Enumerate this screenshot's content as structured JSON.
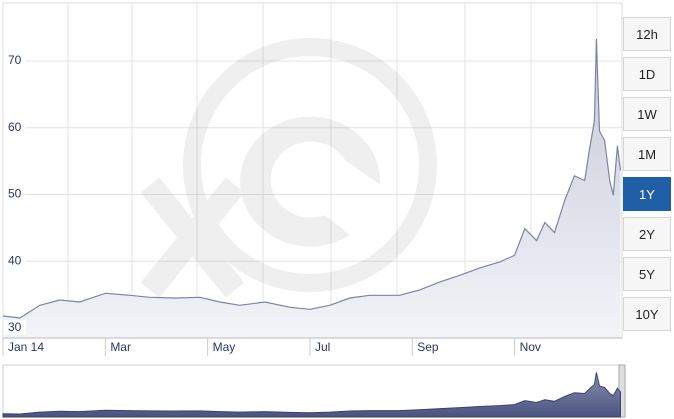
{
  "chart_data": {
    "type": "area",
    "x": [
      0,
      0.33,
      0.72,
      1.11,
      1.5,
      2,
      2.48,
      2.87,
      3.36,
      3.85,
      4.24,
      4.63,
      5.12,
      5.61,
      6.0,
      6.39,
      6.78,
      7.17,
      7.75,
      8.14,
      8.54,
      8.93,
      9.32,
      9.71,
      10.0,
      10.2,
      10.43,
      10.59,
      10.78,
      10.98,
      11.17,
      11.37,
      11.46,
      11.56,
      11.6,
      11.66,
      11.76,
      11.86,
      11.93,
      12.01,
      12.07
    ],
    "values": [
      31.8,
      31.5,
      33.4,
      34.2,
      33.9,
      35.2,
      34.9,
      34.6,
      34.5,
      34.6,
      33.9,
      33.4,
      33.9,
      33.1,
      32.8,
      33.4,
      34.5,
      34.9,
      34.9,
      35.7,
      36.9,
      37.9,
      39.0,
      39.9,
      40.9,
      44.9,
      43.1,
      45.8,
      44.3,
      49.1,
      52.8,
      52.1,
      56.6,
      61.0,
      73.3,
      59.5,
      58.1,
      52.1,
      49.9,
      57.3,
      53.6
    ],
    "color": "#7d84a5",
    "xlim": [
      0,
      12.1
    ],
    "xticks": [
      {
        "value": 0,
        "label": "Jan 14"
      },
      {
        "value": 2,
        "label": "Mar"
      },
      {
        "value": 4,
        "label": "May"
      },
      {
        "value": 6,
        "label": "Jul"
      },
      {
        "value": 8,
        "label": "Sep"
      },
      {
        "value": 10,
        "label": "Nov"
      }
    ],
    "ylim": [
      28.5,
      78.7
    ],
    "yticks": [
      30,
      40,
      50,
      60,
      70
    ],
    "grid": true
  },
  "controls": {
    "buttons": [
      "12h",
      "1D",
      "1W",
      "1M",
      "1Y",
      "2Y",
      "5Y",
      "10Y"
    ],
    "selected": 4
  }
}
